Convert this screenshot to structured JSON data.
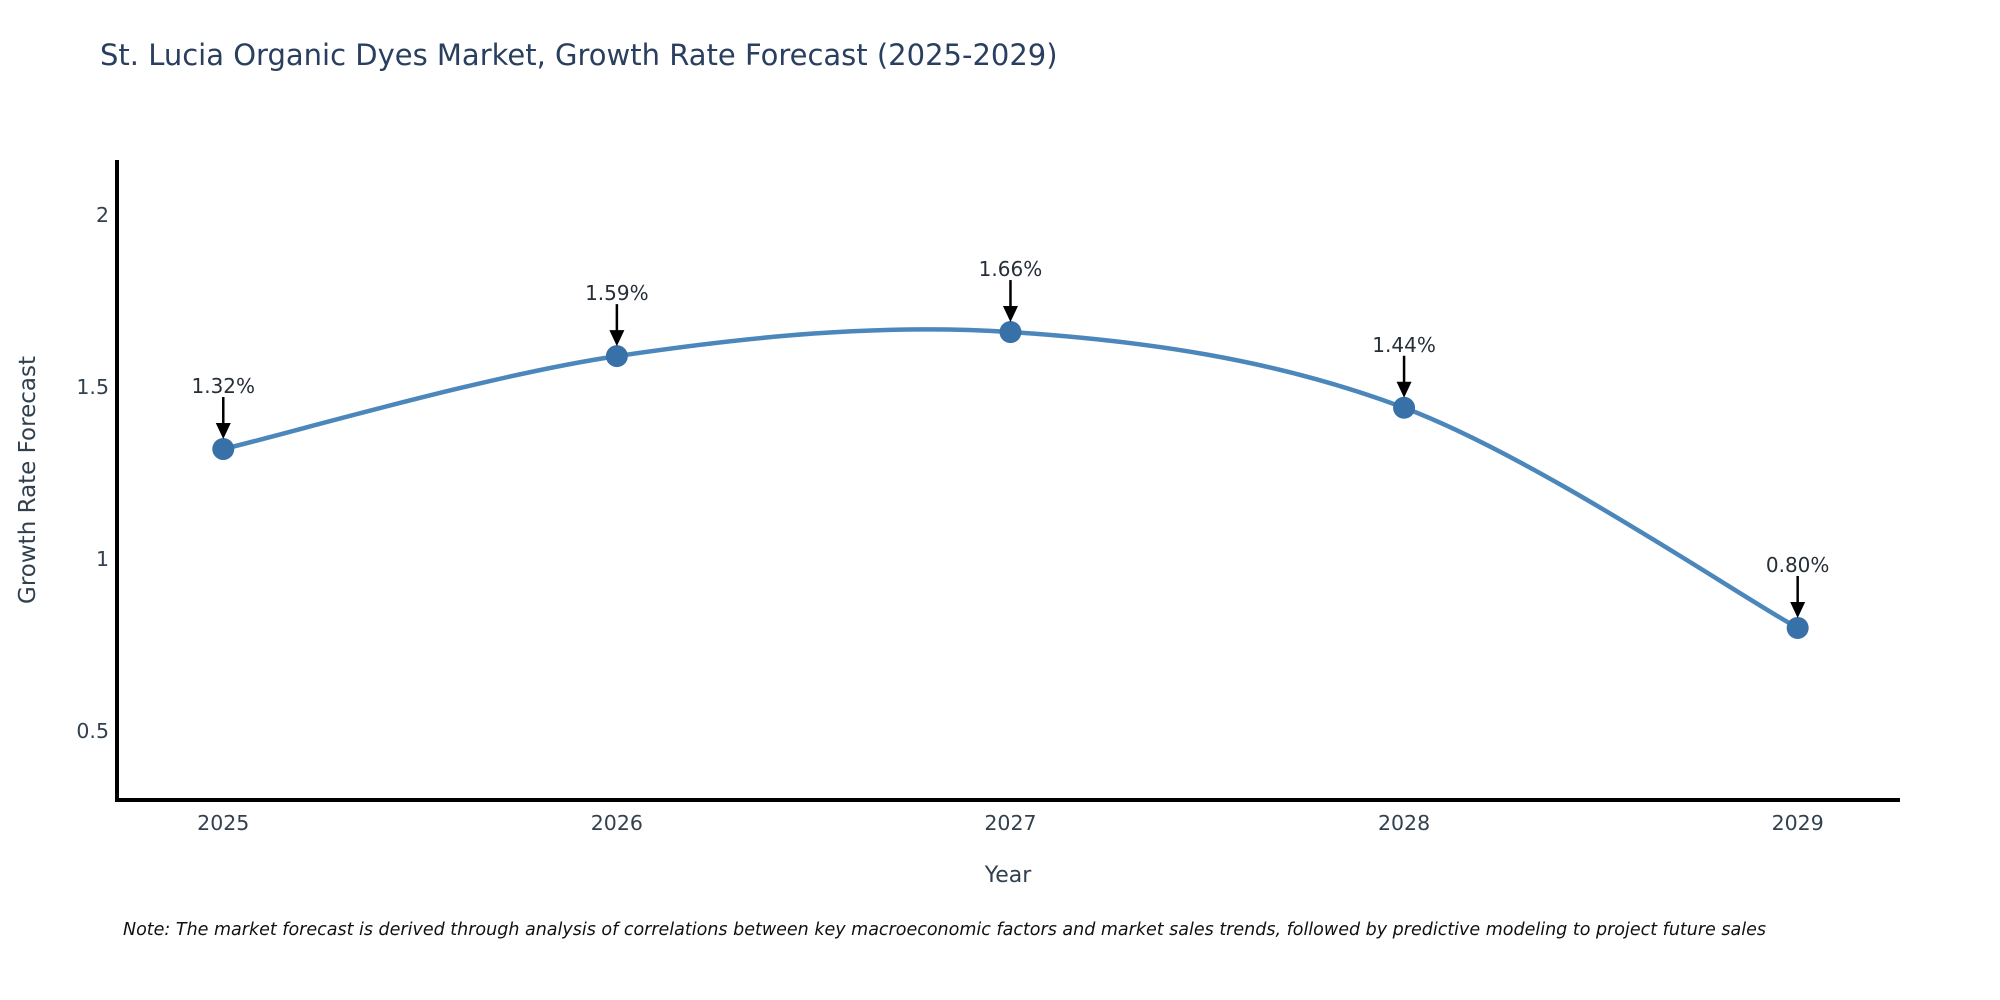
{
  "title": "St. Lucia Organic Dyes Market, Growth Rate Forecast (2025-2029)",
  "note": "Note: The market forecast is derived through analysis of correlations between key macroeconomic factors and market sales trends, followed by predictive modeling to project future sales",
  "chart_data": {
    "type": "line",
    "title": "St. Lucia Organic Dyes Market, Growth Rate Forecast (2025-2029)",
    "xlabel": "Year",
    "ylabel": "Growth Rate Forecast",
    "x": [
      2025,
      2026,
      2027,
      2028,
      2029
    ],
    "values": [
      1.32,
      1.59,
      1.66,
      1.44,
      0.8
    ],
    "point_labels": [
      "1.32%",
      "1.59%",
      "1.66%",
      "1.44%",
      "0.80%"
    ],
    "xticks": [
      "2025",
      "2026",
      "2027",
      "2028",
      "2029"
    ],
    "yticks": [
      0.5,
      1,
      1.5,
      2
    ],
    "ytick_labels": [
      "0.5",
      "1",
      "1.5",
      "2"
    ],
    "xlim": [
      2024.73,
      2029.26
    ],
    "ylim": [
      0.3,
      2.16
    ],
    "grid": false,
    "legend": "none",
    "curve": "smooth",
    "annotations": "value labels with black arrows pointing to each marker",
    "colors": {
      "line": "#4b87bb",
      "marker": "#3871a8",
      "arrow": "#000000",
      "axis": "#000000",
      "title_text": "#2a3f5f",
      "tick_text": "#33414f",
      "background": "#ffffff"
    }
  }
}
